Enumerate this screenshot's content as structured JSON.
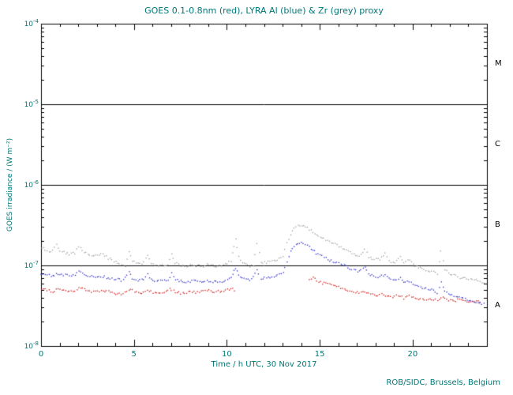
{
  "colors": {
    "text_teal": "#007777",
    "axis_black": "#000000"
  },
  "chart_data": {
    "type": "scatter",
    "title": "GOES 0.1-0.8nm (red), LYRA Al (blue) & Zr (grey) proxy",
    "xlabel": "Time / h UTC, 30 Nov 2017",
    "ylabel": "GOES irradiance / (W m⁻²)",
    "credit": "ROB/SIDC, Brussels, Belgium",
    "xlim": [
      0,
      24
    ],
    "ylim_log10": [
      -8,
      -4
    ],
    "x_major_ticks": [
      0,
      5,
      10,
      15,
      20
    ],
    "x_minor_step": 1,
    "y_ticks_exp": [
      -8,
      -7,
      -6,
      -5,
      -4
    ],
    "hlines": [
      1e-07,
      1e-06,
      1e-05
    ],
    "grid": "off",
    "legend": "in-title",
    "flare_classes": [
      {
        "label": "M",
        "log_center": -4.5
      },
      {
        "label": "C",
        "log_center": -5.5
      },
      {
        "label": "B",
        "log_center": -6.5
      },
      {
        "label": "A",
        "log_center": -7.5
      }
    ],
    "series": [
      {
        "name": "LYRA Zr proxy",
        "color": "#9a9a9a",
        "segments": [
          [
            [
              0.0,
              1.7e-07
            ],
            [
              0.3,
              1.55e-07
            ],
            [
              0.5,
              1.5e-07
            ],
            [
              0.8,
              1.9e-07
            ],
            [
              1.0,
              1.55e-07
            ],
            [
              1.3,
              1.45e-07
            ],
            [
              1.5,
              1.4e-07
            ],
            [
              1.8,
              1.45e-07
            ],
            [
              2.0,
              1.75e-07
            ],
            [
              2.2,
              1.55e-07
            ],
            [
              2.5,
              1.4e-07
            ],
            [
              2.8,
              1.3e-07
            ],
            [
              3.0,
              1.35e-07
            ],
            [
              3.3,
              1.4e-07
            ],
            [
              3.6,
              1.25e-07
            ],
            [
              3.9,
              1.15e-07
            ],
            [
              4.2,
              1.05e-07
            ],
            [
              4.5,
              1e-07
            ],
            [
              4.7,
              1.5e-07
            ],
            [
              4.9,
              1.15e-07
            ],
            [
              5.2,
              1.05e-07
            ],
            [
              5.5,
              1.1e-07
            ],
            [
              5.7,
              1.35e-07
            ],
            [
              5.9,
              1.1e-07
            ],
            [
              6.2,
              1e-07
            ],
            [
              6.5,
              1.05e-07
            ],
            [
              6.8,
              1e-07
            ],
            [
              7.0,
              1.45e-07
            ],
            [
              7.2,
              1.1e-07
            ],
            [
              7.5,
              1e-07
            ],
            [
              7.8,
              1e-07
            ],
            [
              8.1,
              1.05e-07
            ],
            [
              8.4,
              1e-07
            ],
            [
              8.7,
              1e-07
            ],
            [
              9.0,
              1.05e-07
            ],
            [
              9.3,
              1e-07
            ],
            [
              9.6,
              1e-07
            ],
            [
              9.9,
              1.05e-07
            ],
            [
              10.2,
              1.15e-07
            ],
            [
              10.45,
              2.15e-07
            ],
            [
              10.6,
              1.3e-07
            ],
            [
              10.8,
              1.1e-07
            ],
            [
              11.1,
              1e-07
            ],
            [
              11.4,
              1e-07
            ],
            [
              11.6,
              1.9e-07
            ],
            [
              11.8,
              1.1e-07
            ],
            [
              12.1,
              1.1e-07
            ],
            [
              12.4,
              1.15e-07
            ],
            [
              12.7,
              1.2e-07
            ],
            [
              13.0,
              1.35e-07
            ],
            [
              13.2,
              1.9e-07
            ],
            [
              13.4,
              2.5e-07
            ],
            [
              13.6,
              2.9e-07
            ],
            [
              13.8,
              3.1e-07
            ],
            [
              14.0,
              3.2e-07
            ],
            [
              14.2,
              3.05e-07
            ],
            [
              14.4,
              2.85e-07
            ],
            [
              14.6,
              2.6e-07
            ],
            [
              14.8,
              2.4e-07
            ],
            [
              15.0,
              2.25e-07
            ],
            [
              15.3,
              2.1e-07
            ],
            [
              15.6,
              1.95e-07
            ],
            [
              15.9,
              1.8e-07
            ],
            [
              16.2,
              1.65e-07
            ],
            [
              16.5,
              1.5e-07
            ],
            [
              16.8,
              1.4e-07
            ],
            [
              17.1,
              1.3e-07
            ],
            [
              17.4,
              1.6e-07
            ],
            [
              17.6,
              1.3e-07
            ],
            [
              17.9,
              1.2e-07
            ],
            [
              18.2,
              1.2e-07
            ],
            [
              18.5,
              1.45e-07
            ],
            [
              18.7,
              1.15e-07
            ],
            [
              19.0,
              1.1e-07
            ],
            [
              19.3,
              1.35e-07
            ],
            [
              19.5,
              1.1e-07
            ],
            [
              19.8,
              1.2e-07
            ],
            [
              20.1,
              1e-07
            ],
            [
              20.4,
              9.5e-08
            ],
            [
              20.7,
              9e-08
            ],
            [
              21.0,
              8.5e-08
            ],
            [
              21.3,
              8e-08
            ],
            [
              21.5,
              1.5e-07
            ],
            [
              21.7,
              9e-08
            ],
            [
              22.0,
              8e-08
            ],
            [
              22.3,
              7.5e-08
            ],
            [
              22.6,
              7e-08
            ],
            [
              22.9,
              7e-08
            ],
            [
              23.2,
              6.8e-08
            ],
            [
              23.5,
              6.5e-08
            ],
            [
              23.9,
              6e-08
            ]
          ]
        ]
      },
      {
        "name": "LYRA Al proxy",
        "color": "#2424c8",
        "segments": [
          [
            [
              0.0,
              8e-08
            ],
            [
              0.3,
              7.8e-08
            ],
            [
              0.6,
              7.5e-08
            ],
            [
              0.9,
              8e-08
            ],
            [
              1.2,
              7.8e-08
            ],
            [
              1.5,
              7.5e-08
            ],
            [
              1.8,
              7.6e-08
            ],
            [
              2.0,
              8.5e-08
            ],
            [
              2.3,
              7.8e-08
            ],
            [
              2.6,
              7.4e-08
            ],
            [
              2.9,
              7.3e-08
            ],
            [
              3.2,
              7.5e-08
            ],
            [
              3.5,
              7.2e-08
            ],
            [
              3.8,
              7e-08
            ],
            [
              4.1,
              6.8e-08
            ],
            [
              4.4,
              6.6e-08
            ],
            [
              4.7,
              8.5e-08
            ],
            [
              4.9,
              7e-08
            ],
            [
              5.2,
              6.6e-08
            ],
            [
              5.5,
              6.8e-08
            ],
            [
              5.7,
              7.8e-08
            ],
            [
              5.9,
              6.8e-08
            ],
            [
              6.2,
              6.5e-08
            ],
            [
              6.5,
              6.6e-08
            ],
            [
              6.8,
              6.5e-08
            ],
            [
              7.0,
              8e-08
            ],
            [
              7.2,
              6.8e-08
            ],
            [
              7.5,
              6.5e-08
            ],
            [
              7.8,
              6.4e-08
            ],
            [
              8.1,
              6.5e-08
            ],
            [
              8.4,
              6.4e-08
            ],
            [
              8.7,
              6.4e-08
            ],
            [
              9.0,
              6.5e-08
            ],
            [
              9.3,
              6.4e-08
            ],
            [
              9.6,
              6.4e-08
            ],
            [
              9.9,
              6.5e-08
            ],
            [
              10.2,
              7e-08
            ],
            [
              10.45,
              9.5e-08
            ],
            [
              10.7,
              7.2e-08
            ],
            [
              11.0,
              6.8e-08
            ],
            [
              11.3,
              6.8e-08
            ],
            [
              11.6,
              9e-08
            ],
            [
              11.8,
              7e-08
            ],
            [
              12.1,
              7.2e-08
            ],
            [
              12.4,
              7.4e-08
            ],
            [
              12.7,
              7.8e-08
            ],
            [
              13.0,
              8.5e-08
            ],
            [
              13.2,
              1.15e-07
            ],
            [
              13.4,
              1.5e-07
            ],
            [
              13.6,
              1.75e-07
            ],
            [
              13.8,
              1.9e-07
            ],
            [
              14.0,
              1.95e-07
            ],
            [
              14.2,
              1.85e-07
            ],
            [
              14.4,
              1.7e-07
            ],
            [
              14.6,
              1.55e-07
            ],
            [
              14.8,
              1.45e-07
            ],
            [
              15.0,
              1.35e-07
            ],
            [
              15.3,
              1.25e-07
            ],
            [
              15.6,
              1.15e-07
            ],
            [
              15.9,
              1.1e-07
            ],
            [
              16.2,
              1.05e-07
            ],
            [
              16.5,
              9.5e-08
            ],
            [
              16.8,
              9e-08
            ],
            [
              17.1,
              8.5e-08
            ],
            [
              17.4,
              9.5e-08
            ],
            [
              17.6,
              8e-08
            ],
            [
              17.9,
              7.5e-08
            ],
            [
              18.2,
              7.2e-08
            ],
            [
              18.5,
              8e-08
            ],
            [
              18.7,
              7e-08
            ],
            [
              19.0,
              6.5e-08
            ],
            [
              19.3,
              7.2e-08
            ],
            [
              19.5,
              6.3e-08
            ],
            [
              19.8,
              6.5e-08
            ],
            [
              20.1,
              5.8e-08
            ],
            [
              20.4,
              5.5e-08
            ],
            [
              20.7,
              5.2e-08
            ],
            [
              21.0,
              5e-08
            ],
            [
              21.3,
              4.6e-08
            ],
            [
              21.5,
              6.5e-08
            ],
            [
              21.7,
              4.8e-08
            ],
            [
              22.0,
              4.4e-08
            ],
            [
              22.3,
              4.2e-08
            ],
            [
              22.6,
              4e-08
            ],
            [
              22.9,
              3.8e-08
            ],
            [
              23.2,
              3.7e-08
            ],
            [
              23.5,
              3.5e-08
            ],
            [
              23.9,
              3.3e-08
            ]
          ]
        ]
      },
      {
        "name": "GOES 0.1-0.8nm",
        "color": "#cc1111",
        "segments": [
          [
            [
              0.0,
              5.2e-08
            ],
            [
              0.3,
              5e-08
            ],
            [
              0.6,
              4.8e-08
            ],
            [
              0.9,
              5.2e-08
            ],
            [
              1.2,
              5e-08
            ],
            [
              1.5,
              4.8e-08
            ],
            [
              1.8,
              5e-08
            ],
            [
              2.1,
              5.4e-08
            ],
            [
              2.4,
              5e-08
            ],
            [
              2.7,
              4.7e-08
            ],
            [
              3.0,
              4.8e-08
            ],
            [
              3.3,
              5e-08
            ],
            [
              3.6,
              4.8e-08
            ],
            [
              3.9,
              4.6e-08
            ],
            [
              4.2,
              4.5e-08
            ],
            [
              4.5,
              4.6e-08
            ],
            [
              4.8,
              5.2e-08
            ],
            [
              5.1,
              4.7e-08
            ],
            [
              5.4,
              4.6e-08
            ],
            [
              5.7,
              5e-08
            ],
            [
              6.0,
              4.7e-08
            ],
            [
              6.3,
              4.6e-08
            ],
            [
              6.6,
              4.7e-08
            ],
            [
              6.9,
              5.2e-08
            ],
            [
              7.2,
              4.8e-08
            ],
            [
              7.5,
              4.6e-08
            ],
            [
              7.8,
              4.7e-08
            ],
            [
              8.1,
              4.8e-08
            ],
            [
              8.4,
              4.7e-08
            ],
            [
              8.7,
              4.8e-08
            ],
            [
              9.0,
              5e-08
            ],
            [
              9.3,
              4.8e-08
            ],
            [
              9.6,
              4.8e-08
            ],
            [
              9.9,
              5e-08
            ],
            [
              10.2,
              5.2e-08
            ],
            [
              10.5,
              5e-08
            ]
          ],
          [
            [
              14.4,
              6.8e-08
            ],
            [
              14.6,
              7.2e-08
            ],
            [
              14.8,
              6.5e-08
            ],
            [
              15.0,
              6.2e-08
            ],
            [
              15.3,
              6e-08
            ],
            [
              15.6,
              5.8e-08
            ],
            [
              15.9,
              5.5e-08
            ],
            [
              16.2,
              5.2e-08
            ],
            [
              16.5,
              5e-08
            ],
            [
              16.8,
              4.8e-08
            ],
            [
              17.1,
              4.6e-08
            ],
            [
              17.4,
              4.8e-08
            ],
            [
              17.7,
              4.4e-08
            ],
            [
              18.0,
              4.3e-08
            ],
            [
              18.3,
              4.4e-08
            ],
            [
              18.6,
              4.2e-08
            ],
            [
              18.9,
              4.1e-08
            ],
            [
              19.2,
              4.3e-08
            ],
            [
              19.5,
              4e-08
            ],
            [
              19.8,
              4.2e-08
            ],
            [
              20.1,
              4e-08
            ],
            [
              20.4,
              3.9e-08
            ],
            [
              20.7,
              3.8e-08
            ],
            [
              21.0,
              3.9e-08
            ],
            [
              21.3,
              3.7e-08
            ],
            [
              21.6,
              4e-08
            ],
            [
              21.9,
              3.8e-08
            ],
            [
              22.2,
              3.7e-08
            ],
            [
              22.5,
              3.8e-08
            ],
            [
              22.8,
              3.6e-08
            ],
            [
              23.1,
              3.7e-08
            ],
            [
              23.4,
              3.6e-08
            ],
            [
              23.7,
              3.5e-08
            ]
          ]
        ]
      }
    ]
  }
}
